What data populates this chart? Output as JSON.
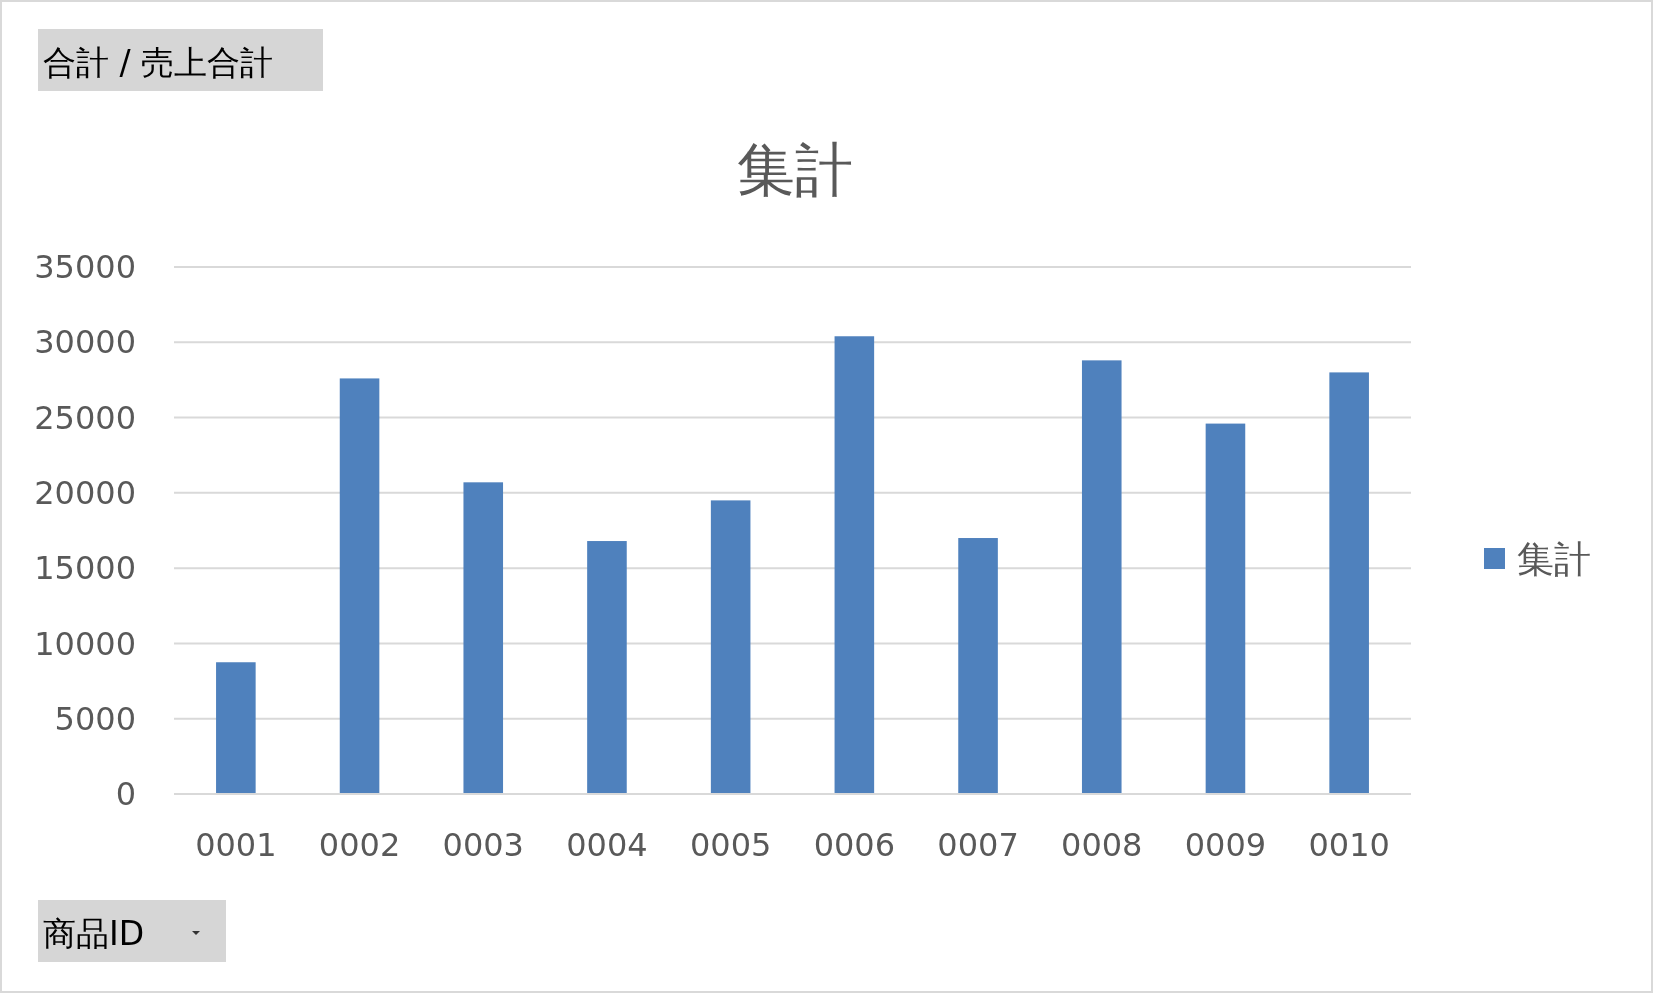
{
  "chart_data": {
    "type": "bar",
    "title": "集計",
    "xlabel": "商品ID",
    "annotations": [
      "合計 / 売上合計"
    ],
    "categories": [
      "0001",
      "0002",
      "0003",
      "0004",
      "0005",
      "0006",
      "0007",
      "0008",
      "0009",
      "0010"
    ],
    "series": [
      {
        "name": "集計",
        "color": "#4f81bd",
        "values": [
          8750,
          27600,
          20700,
          16800,
          19500,
          30400,
          17000,
          28800,
          24600,
          28000
        ]
      }
    ],
    "ylim": [
      0,
      35000
    ],
    "yticks": [
      0,
      5000,
      10000,
      15000,
      20000,
      25000,
      30000,
      35000
    ],
    "grid": "y",
    "legend": "right"
  }
}
